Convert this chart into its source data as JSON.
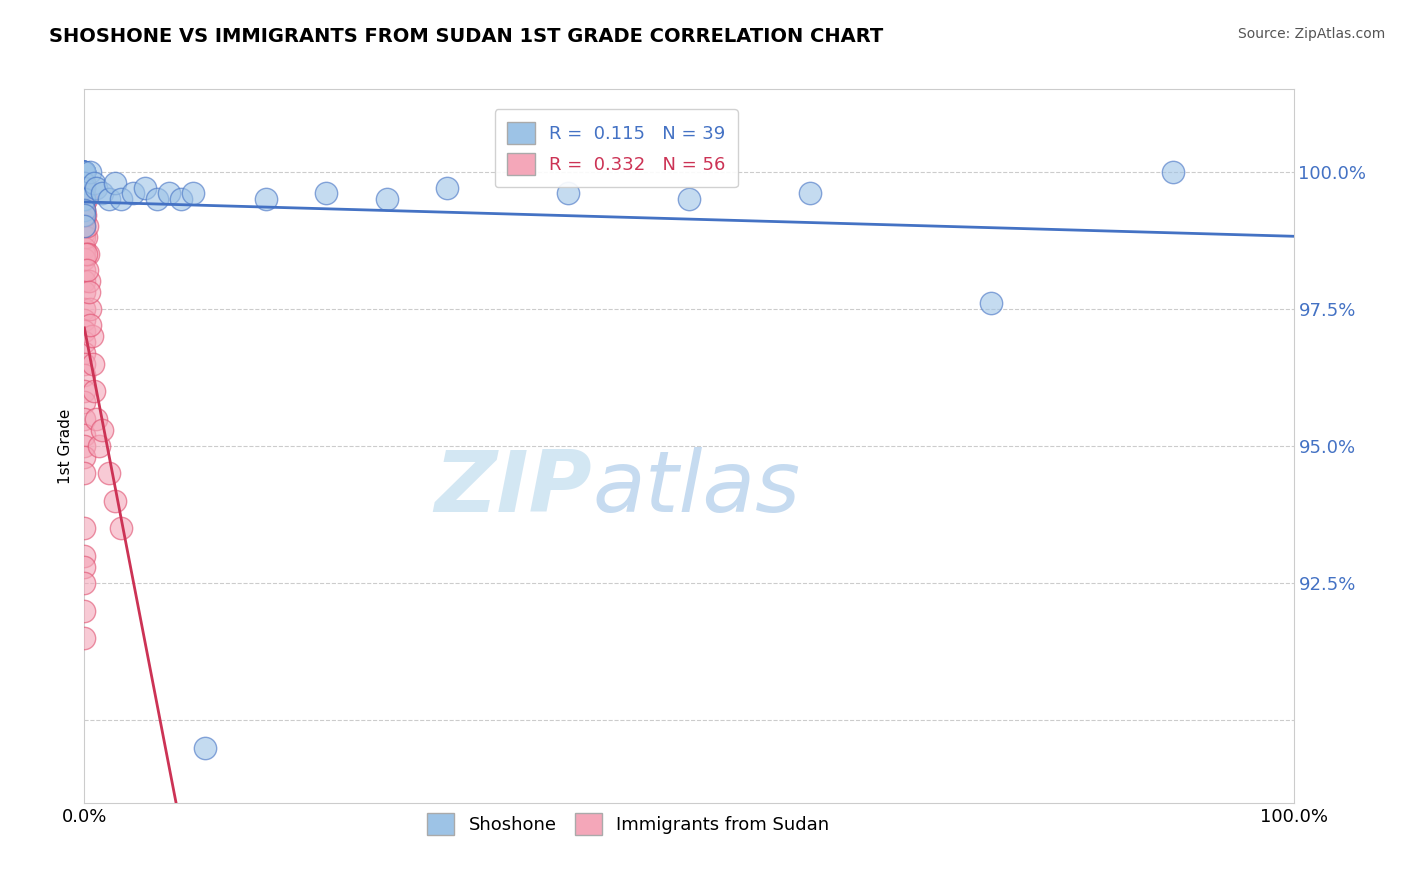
{
  "title": "SHOSHONE VS IMMIGRANTS FROM SUDAN 1ST GRADE CORRELATION CHART",
  "source_text": "Source: ZipAtlas.com",
  "ylabel": "1st Grade",
  "watermark_zip": "ZIP",
  "watermark_atlas": "atlas",
  "xlim": [
    0.0,
    100.0
  ],
  "ylim": [
    88.5,
    101.5
  ],
  "yticks": [
    90.0,
    92.5,
    95.0,
    97.5,
    100.0
  ],
  "ytick_labels": [
    "",
    "92.5%",
    "95.0%",
    "97.5%",
    "100.0%"
  ],
  "xticks": [
    0.0,
    100.0
  ],
  "xtick_labels": [
    "0.0%",
    "100.0%"
  ],
  "legend_r_items": [
    {
      "label": "R =  0.115   N = 39",
      "color": "#4472c4"
    },
    {
      "label": "R =  0.332   N = 56",
      "color": "#cc3355"
    }
  ],
  "shoshone_color": "#9dc3e6",
  "sudan_color": "#f4a7b9",
  "shoshone_edge_color": "#4472c4",
  "sudan_edge_color": "#e05070",
  "shoshone_trend_color": "#4472c4",
  "sudan_trend_color": "#cc3355",
  "shoshone_x": [
    0.0,
    0.0,
    0.0,
    0.0,
    0.0,
    0.0,
    0.0,
    0.0,
    0.0,
    0.0,
    0.0,
    0.0,
    0.0,
    0.0,
    0.0,
    0.0,
    0.5,
    0.8,
    1.0,
    1.5,
    2.0,
    2.5,
    3.0,
    4.0,
    5.0,
    6.0,
    7.0,
    8.0,
    9.0,
    10.0,
    15.0,
    20.0,
    25.0,
    30.0,
    40.0,
    50.0,
    60.0,
    75.0,
    90.0
  ],
  "shoshone_y": [
    100.0,
    100.0,
    100.0,
    100.0,
    100.0,
    100.0,
    100.0,
    100.0,
    100.0,
    99.8,
    99.7,
    99.5,
    99.5,
    99.3,
    99.2,
    99.0,
    100.0,
    99.8,
    99.7,
    99.6,
    99.5,
    99.8,
    99.5,
    99.6,
    99.7,
    99.5,
    99.6,
    99.5,
    99.6,
    89.5,
    99.5,
    99.6,
    99.5,
    99.7,
    99.6,
    99.5,
    99.6,
    97.6,
    100.0
  ],
  "sudan_x": [
    0.0,
    0.0,
    0.0,
    0.0,
    0.0,
    0.0,
    0.0,
    0.0,
    0.0,
    0.0,
    0.0,
    0.0,
    0.0,
    0.0,
    0.0,
    0.0,
    0.0,
    0.0,
    0.0,
    0.0,
    0.0,
    0.0,
    0.0,
    0.0,
    0.0,
    0.0,
    0.0,
    0.0,
    0.0,
    0.0,
    0.1,
    0.1,
    0.2,
    0.3,
    0.4,
    0.5,
    0.6,
    0.7,
    0.8,
    1.0,
    1.2,
    1.5,
    2.0,
    2.5,
    3.0,
    0.05,
    0.15,
    0.25,
    0.35,
    0.45,
    0.0,
    0.0,
    0.0,
    0.0,
    0.0,
    0.0
  ],
  "sudan_y": [
    99.8,
    99.7,
    99.5,
    99.4,
    99.3,
    99.2,
    99.1,
    99.0,
    98.9,
    98.8,
    98.6,
    98.5,
    98.4,
    98.2,
    98.0,
    97.8,
    97.5,
    97.3,
    97.1,
    96.9,
    96.7,
    96.5,
    96.3,
    96.0,
    95.8,
    95.5,
    95.2,
    95.0,
    94.8,
    94.5,
    99.5,
    98.8,
    99.0,
    98.5,
    98.0,
    97.5,
    97.0,
    96.5,
    96.0,
    95.5,
    95.0,
    95.3,
    94.5,
    94.0,
    93.5,
    99.2,
    98.5,
    98.2,
    97.8,
    97.2,
    93.5,
    93.0,
    92.8,
    92.5,
    92.0,
    91.5
  ]
}
